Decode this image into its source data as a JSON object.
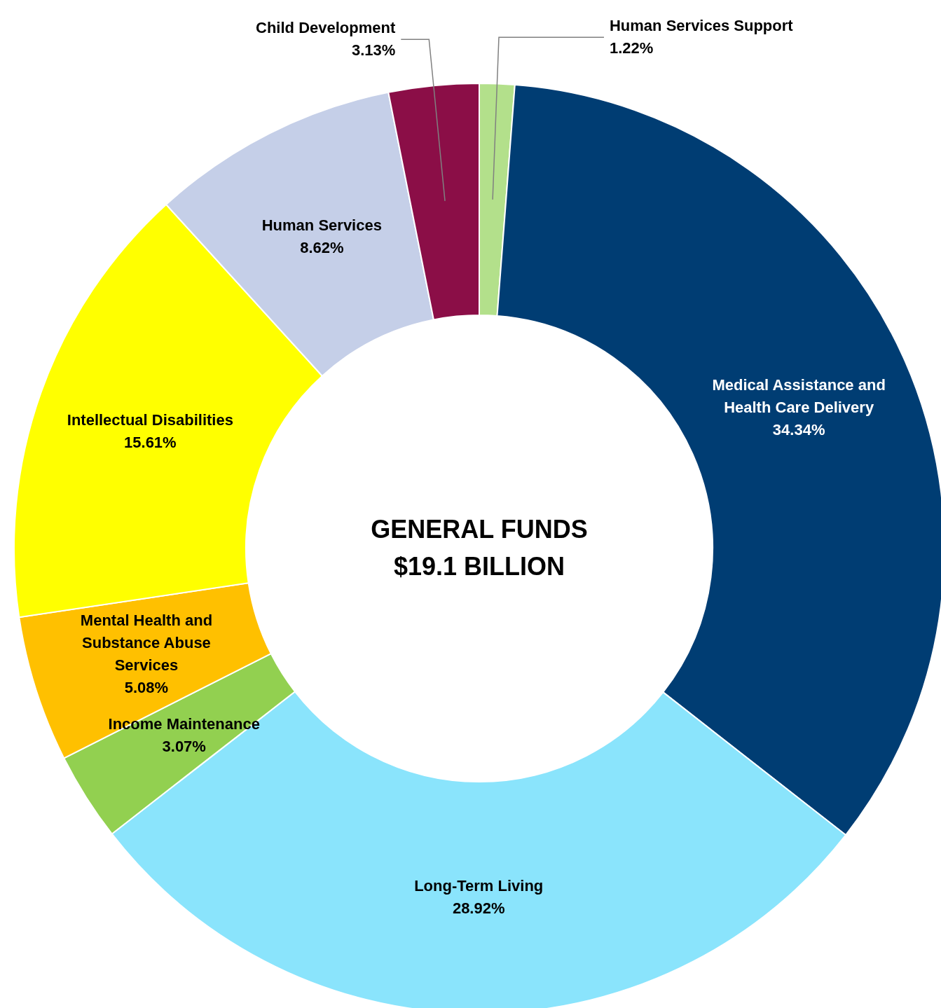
{
  "chart_data": {
    "type": "donut",
    "title": "GENERAL FUNDS",
    "subtitle": "$19.1 BILLION",
    "categories": [
      "Human Services Support",
      "Medical Assistance and Health Care Delivery",
      "Long-Term Living",
      "Income Maintenance",
      "Mental Health and Substance Abuse Services",
      "Intellectual Disabilities",
      "Human Services",
      "Child Development"
    ],
    "values": [
      1.22,
      34.34,
      28.92,
      3.07,
      5.08,
      15.61,
      8.62,
      3.13
    ],
    "value_labels": [
      "1.22%",
      "34.34%",
      "28.92%",
      "3.07%",
      "5.08%",
      "15.61%",
      "8.62%",
      "3.13%"
    ],
    "colors": [
      "#b3e08b",
      "#003d73",
      "#8ae4fc",
      "#92d050",
      "#ffc000",
      "#ffff00",
      "#c5cfe8",
      "#8b0e47"
    ]
  }
}
